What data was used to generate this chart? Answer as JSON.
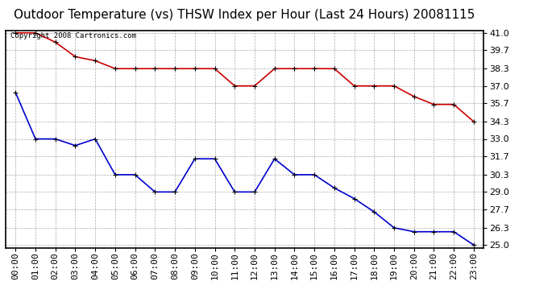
{
  "title": "Outdoor Temperature (vs) THSW Index per Hour (Last 24 Hours) 20081115",
  "copyright_text": "Copyright 2008 Cartronics.com",
  "hours": [
    "00:00",
    "01:00",
    "02:00",
    "03:00",
    "04:00",
    "05:00",
    "06:00",
    "07:00",
    "08:00",
    "09:00",
    "10:00",
    "11:00",
    "12:00",
    "13:00",
    "14:00",
    "15:00",
    "16:00",
    "17:00",
    "18:00",
    "19:00",
    "20:00",
    "21:00",
    "22:00",
    "23:00"
  ],
  "thsw": [
    41.0,
    41.0,
    40.3,
    39.2,
    38.9,
    38.3,
    38.3,
    38.3,
    38.3,
    38.3,
    38.3,
    37.0,
    37.0,
    38.3,
    38.3,
    38.3,
    38.3,
    37.0,
    37.0,
    37.0,
    36.2,
    35.6,
    35.6,
    34.3
  ],
  "outdoor_temp": [
    36.5,
    33.0,
    33.0,
    32.5,
    33.0,
    30.3,
    30.3,
    29.0,
    29.0,
    31.5,
    31.5,
    29.0,
    29.0,
    31.5,
    30.3,
    30.3,
    29.3,
    28.5,
    27.5,
    26.3,
    26.0,
    26.0,
    26.0,
    25.0
  ],
  "thsw_color": "#cc0000",
  "temp_color": "#0000cc",
  "background_color": "#ffffff",
  "grid_color": "#aaaaaa",
  "ymin": 25.0,
  "ymax": 41.0,
  "yticks": [
    25.0,
    26.3,
    27.7,
    29.0,
    30.3,
    31.7,
    33.0,
    34.3,
    35.7,
    37.0,
    38.3,
    39.7,
    41.0
  ],
  "title_fontsize": 11,
  "tick_fontsize": 8,
  "copyright_fontsize": 6.5
}
